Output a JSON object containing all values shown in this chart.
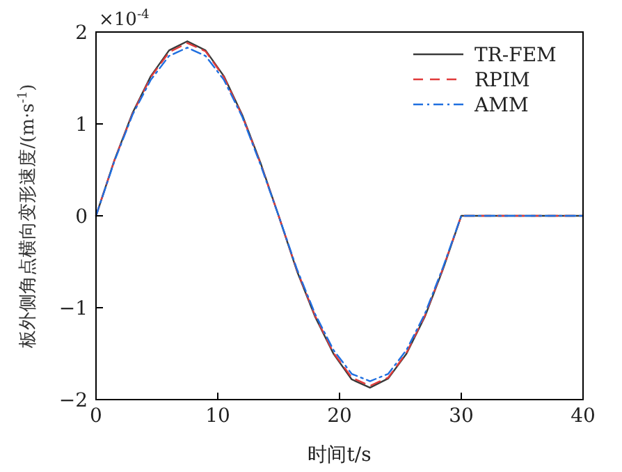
{
  "chart_data": {
    "type": "line",
    "xlabel": "时间t/s",
    "ylabel": "板外侧角点横向变形速度/(m·s$^{-1}$)",
    "annotations": [
      "×10$^{-4}$"
    ],
    "xlim": [
      0,
      40
    ],
    "ylim": [
      -2,
      2
    ],
    "xticks": [
      0,
      10,
      20,
      30,
      40
    ],
    "yticks": [
      -2,
      -1,
      0,
      1,
      2
    ],
    "legend": "top right",
    "grid": false,
    "x": [
      0,
      1.5,
      3,
      4.5,
      6,
      7.5,
      9,
      10.5,
      12,
      13.5,
      15,
      16.5,
      18,
      19.5,
      21,
      22.5,
      24,
      25.5,
      27,
      28.5,
      30,
      35,
      40
    ],
    "series": [
      {
        "name": "TR-FEM",
        "color": "#3a3a3a",
        "line_style": "solid",
        "values": [
          0,
          0.6,
          1.12,
          1.52,
          1.8,
          1.9,
          1.8,
          1.52,
          1.1,
          0.58,
          0,
          -0.6,
          -1.1,
          -1.5,
          -1.78,
          -1.87,
          -1.77,
          -1.5,
          -1.1,
          -0.58,
          0,
          0,
          0
        ]
      },
      {
        "name": "RPIM",
        "color": "#e03a3a",
        "line_style": "dashed",
        "values": [
          0,
          0.6,
          1.11,
          1.51,
          1.78,
          1.88,
          1.79,
          1.51,
          1.09,
          0.57,
          0,
          -0.59,
          -1.09,
          -1.49,
          -1.76,
          -1.85,
          -1.76,
          -1.49,
          -1.09,
          -0.57,
          0,
          0,
          0
        ]
      },
      {
        "name": "AMM",
        "color": "#1f6fe0",
        "line_style": "dashdot",
        "values": [
          0,
          0.59,
          1.1,
          1.48,
          1.74,
          1.83,
          1.74,
          1.48,
          1.08,
          0.56,
          0,
          -0.58,
          -1.07,
          -1.46,
          -1.72,
          -1.8,
          -1.72,
          -1.46,
          -1.07,
          -0.56,
          0,
          0,
          0
        ]
      }
    ]
  }
}
